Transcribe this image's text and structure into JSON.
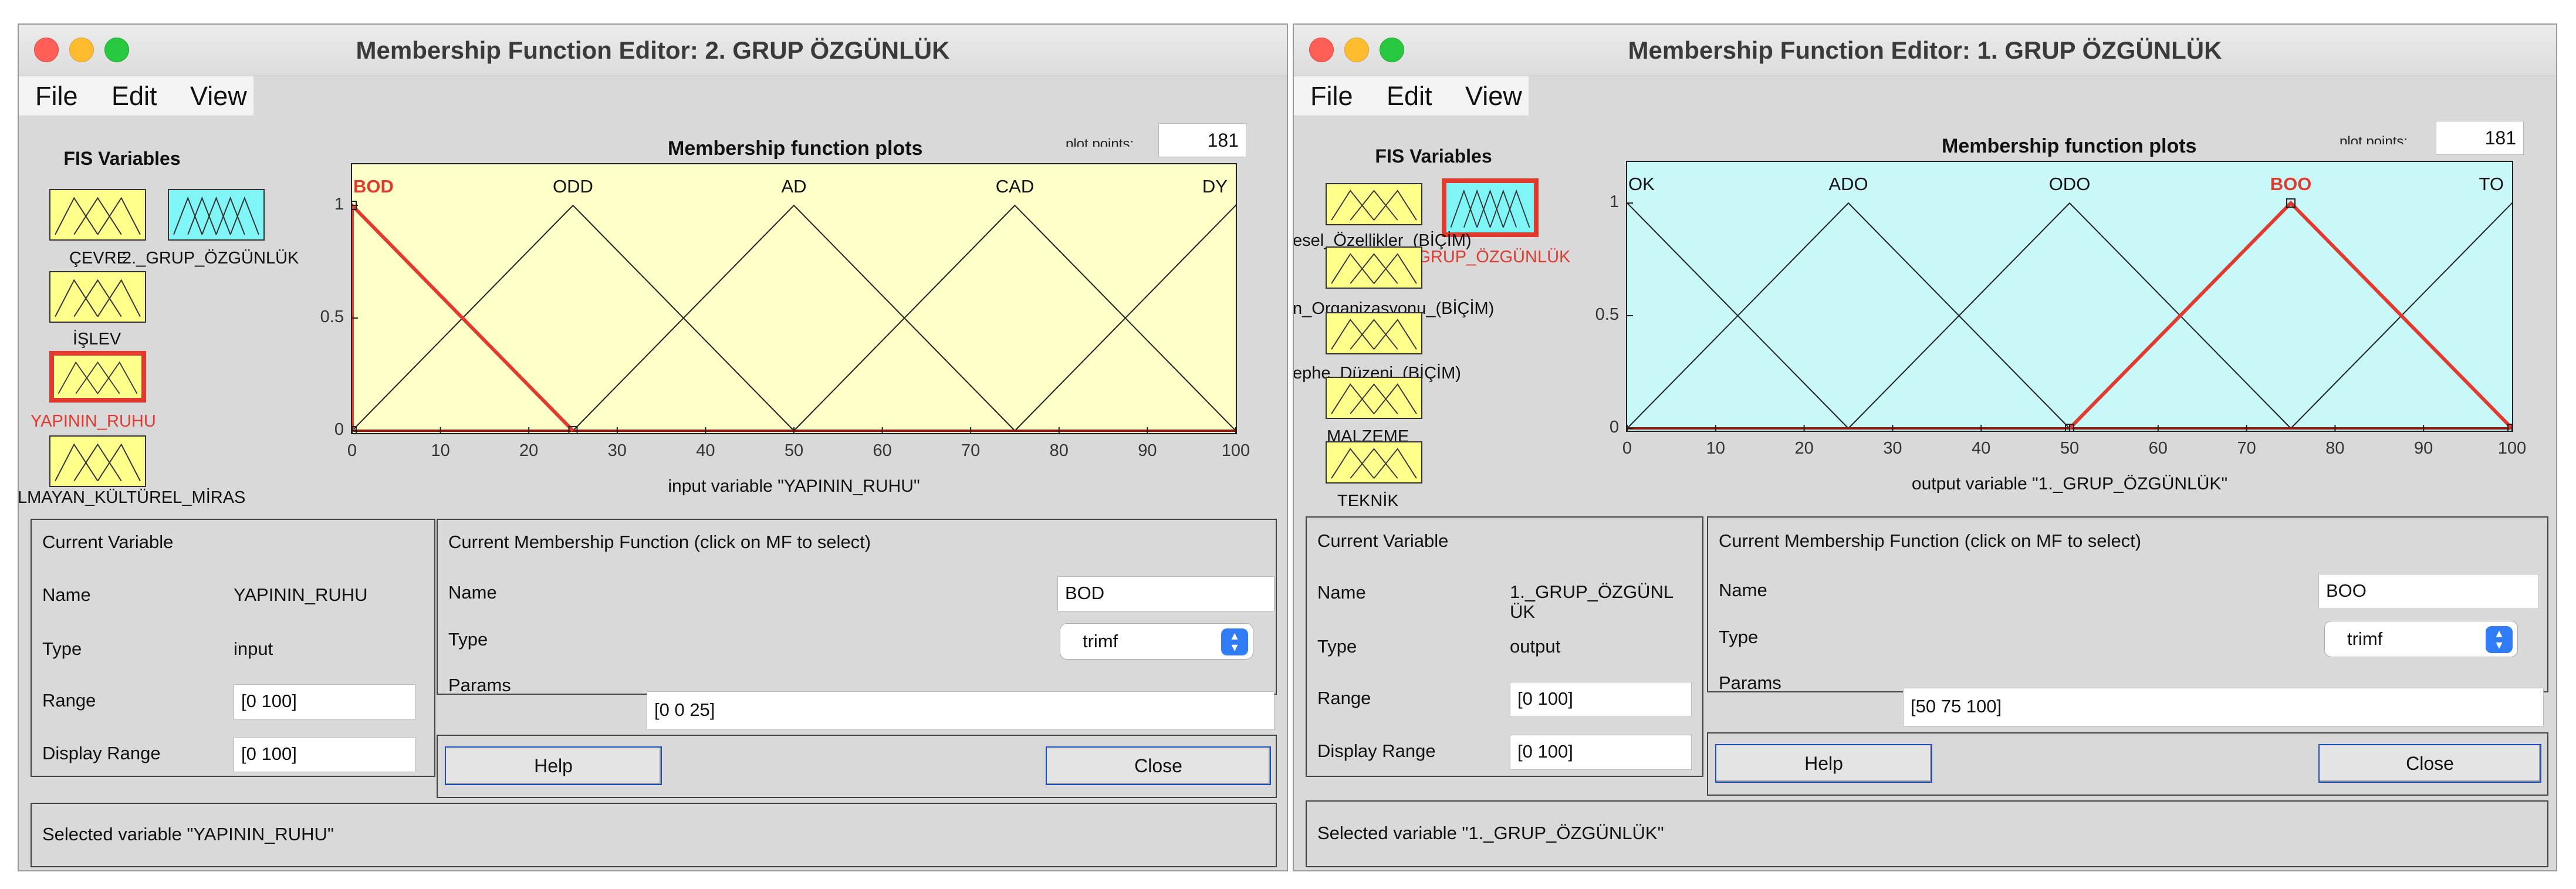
{
  "colors": {
    "input_fill": "#ffffc8",
    "output_fill": "#c8f8f8",
    "selected_mf": "#e23a2e",
    "var_input": "#ffff8c",
    "var_output": "#7ff5f5"
  },
  "left": {
    "window_title": "Membership Function Editor: 2. GRUP ÖZGÜNLÜK",
    "menu": [
      "File",
      "Edit",
      "View"
    ],
    "fis_variables_title": "FIS Variables",
    "variable_labels": [
      "ÇEVRE",
      "2._GRUP_ÖZGÜNLÜK",
      "İŞLEV",
      "YAPININ_RUHU",
      "LMAYAN_KÜLTÜREL_MİRAS"
    ],
    "plot_title": "Membership function plots",
    "plot_points_label": "plot points:",
    "plot_points_value": "181",
    "axis_label": "input variable \"YAPININ_RUHU\"",
    "x_ticks": [
      "0",
      "10",
      "20",
      "30",
      "40",
      "50",
      "60",
      "70",
      "80",
      "90",
      "100"
    ],
    "y_ticks": [
      "1",
      "0.5",
      "0"
    ],
    "mfs": [
      {
        "name": "BOD",
        "params": [
          0,
          0,
          25
        ],
        "selected": true
      },
      {
        "name": "ODD",
        "params": [
          0,
          25,
          50
        ],
        "selected": false
      },
      {
        "name": "AD",
        "params": [
          25,
          50,
          75
        ],
        "selected": false
      },
      {
        "name": "CAD",
        "params": [
          50,
          75,
          100
        ],
        "selected": false
      },
      {
        "name": "DY",
        "params": [
          75,
          100,
          125
        ],
        "selected": false
      }
    ],
    "current_variable": {
      "title": "Current Variable",
      "name_label": "Name",
      "name_value": "YAPININ_RUHU",
      "type_label": "Type",
      "type_value": "input",
      "range_label": "Range",
      "range_value": "[0 100]",
      "display_range_label": "Display Range",
      "display_range_value": "[0 100]"
    },
    "current_mf": {
      "title": "Current Membership Function (click on MF to select)",
      "name_label": "Name",
      "name_value": "BOD",
      "type_label": "Type",
      "type_value": "trimf",
      "params_label": "Params",
      "params_value": "[0 0 25]"
    },
    "help_label": "Help",
    "close_label": "Close",
    "status": "Selected variable \"YAPININ_RUHU\""
  },
  "right": {
    "window_title": "Membership Function Editor: 1. GRUP ÖZGÜNLÜK",
    "menu": [
      "File",
      "Edit",
      "View"
    ],
    "fis_variables_title": "FIS Variables",
    "variable_labels": [
      "esel_Özellikler_(BİÇİM)",
      "1._GRUP_ÖZGÜNLÜK",
      "n_Organizasyonu_(BİÇİM)",
      "ephe_Düzeni_(BİÇİM)",
      "MALZEME",
      "TEKNİK"
    ],
    "plot_title": "Membership function plots",
    "plot_points_label": "plot points:",
    "plot_points_value": "181",
    "axis_label": "output variable \"1._GRUP_ÖZGÜNLÜK\"",
    "x_ticks": [
      "0",
      "10",
      "20",
      "30",
      "40",
      "50",
      "60",
      "70",
      "80",
      "90",
      "100"
    ],
    "y_ticks": [
      "1",
      "0.5",
      "0"
    ],
    "mfs": [
      {
        "name": "OK",
        "params": [
          -25,
          0,
          25
        ],
        "selected": false
      },
      {
        "name": "ADO",
        "params": [
          0,
          25,
          50
        ],
        "selected": false
      },
      {
        "name": "ODO",
        "params": [
          25,
          50,
          75
        ],
        "selected": false
      },
      {
        "name": "BOO",
        "params": [
          50,
          75,
          100
        ],
        "selected": true
      },
      {
        "name": "TO",
        "params": [
          75,
          100,
          125
        ],
        "selected": false
      }
    ],
    "current_variable": {
      "title": "Current Variable",
      "name_label": "Name",
      "name_value": "1._GRUP_ÖZGÜNLÜK",
      "type_label": "Type",
      "type_value": "output",
      "range_label": "Range",
      "range_value": "[0 100]",
      "display_range_label": "Display Range",
      "display_range_value": "[0 100]"
    },
    "current_mf": {
      "title": "Current Membership Function (click on MF to select)",
      "name_label": "Name",
      "name_value": "BOO",
      "type_label": "Type",
      "type_value": "trimf",
      "params_label": "Params",
      "params_value": "[50 75 100]"
    },
    "help_label": "Help",
    "close_label": "Close",
    "status": "Selected variable \"1._GRUP_ÖZGÜNLÜK\""
  }
}
